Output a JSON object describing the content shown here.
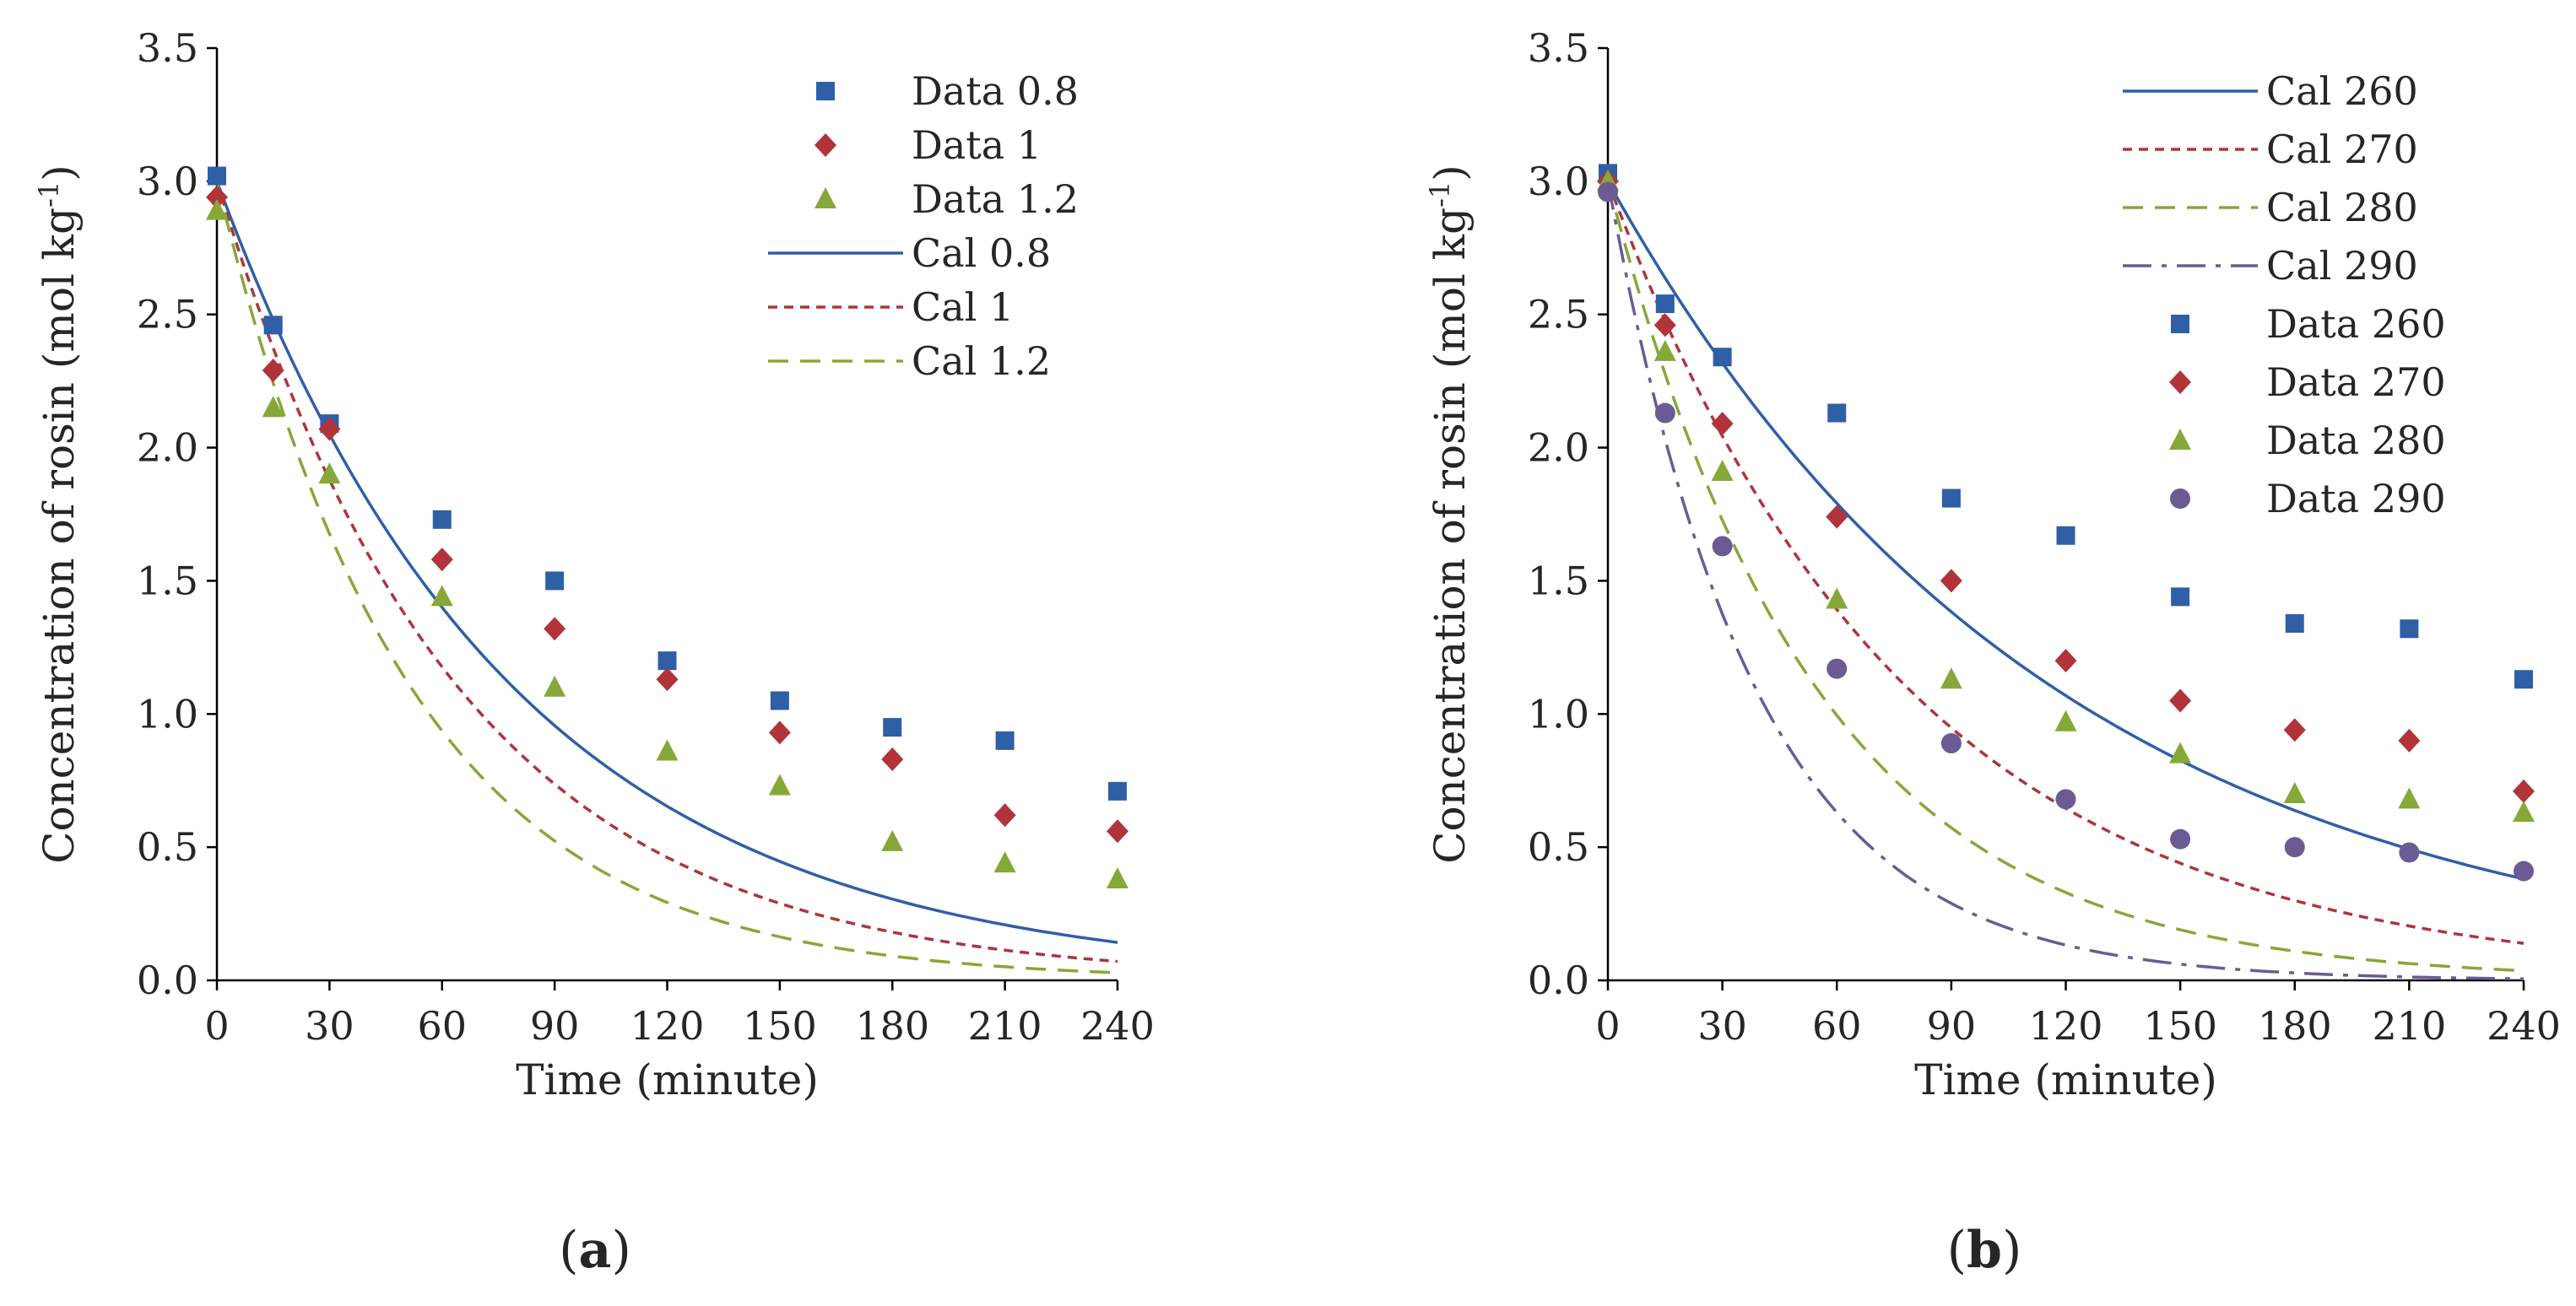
{
  "figure": {
    "panels": [
      {
        "open": "(",
        "letter": "a",
        "close": ")"
      },
      {
        "open": "(",
        "letter": "b",
        "close": ")"
      }
    ]
  },
  "chart_data": [
    {
      "type": "scatter",
      "id": "a",
      "xlabel": "Time (minute)",
      "ylabel_main": "Concentration of rosin (mol kg",
      "ylabel_sup": "-1",
      "ylabel_end": ")",
      "xlim": [
        0,
        240
      ],
      "ylim": [
        0,
        3.5
      ],
      "xticks": [
        0,
        30,
        60,
        90,
        120,
        150,
        180,
        210,
        240
      ],
      "xtick_labels": [
        "0",
        "30",
        "60",
        "90",
        "120",
        "150",
        "180",
        "210",
        "240"
      ],
      "yticks": [
        0,
        0.5,
        1,
        1.5,
        2,
        2.5,
        3,
        3.5
      ],
      "ytick_labels": [
        "0.0",
        "0.5",
        "1.0",
        "1.5",
        "2.0",
        "2.5",
        "3.0",
        "3.5"
      ],
      "grid": false,
      "legend_position": "top-right",
      "data_series": [
        {
          "name": "Data 0.8",
          "marker": "square",
          "color": "#2f5fa7",
          "x": [
            0,
            15,
            30,
            60,
            90,
            120,
            150,
            180,
            210,
            240
          ],
          "y": [
            3.02,
            2.46,
            2.09,
            1.73,
            1.5,
            1.2,
            1.05,
            0.95,
            0.9,
            0.71
          ]
        },
        {
          "name": "Data 1",
          "marker": "diamond",
          "color": "#b0343a",
          "x": [
            0,
            15,
            30,
            60,
            90,
            120,
            150,
            180,
            210,
            240
          ],
          "y": [
            2.94,
            2.29,
            2.07,
            1.58,
            1.32,
            1.13,
            0.93,
            0.83,
            0.62,
            0.56
          ]
        },
        {
          "name": "Data 1.2",
          "marker": "triangle",
          "color": "#86a839",
          "x": [
            0,
            15,
            30,
            60,
            90,
            120,
            150,
            180,
            210,
            240
          ],
          "y": [
            2.89,
            2.15,
            1.9,
            1.44,
            1.1,
            0.86,
            0.73,
            0.52,
            0.44,
            0.38
          ]
        }
      ],
      "fit_series": [
        {
          "name": "Cal 0.8",
          "style": "solid",
          "color": "#2f5fa7",
          "c0": 3.0,
          "k": 0.0127
        },
        {
          "name": "Cal 1",
          "style": "dotted",
          "color": "#b0343a",
          "c0": 3.0,
          "k": 0.0156
        },
        {
          "name": "Cal 1.2",
          "style": "dashed",
          "color": "#86a839",
          "c0": 3.0,
          "k": 0.0194
        }
      ],
      "legend_order": [
        "Data 0.8",
        "Data 1",
        "Data 1.2",
        "Cal 0.8",
        "Cal 1",
        "Cal 1.2"
      ]
    },
    {
      "type": "scatter",
      "id": "b",
      "xlabel": "Time (minute)",
      "ylabel_main": "Concentration of rosin (mol kg",
      "ylabel_sup": "-1",
      "ylabel_end": ")",
      "xlim": [
        0,
        240
      ],
      "ylim": [
        0,
        3.5
      ],
      "xticks": [
        0,
        30,
        60,
        90,
        120,
        150,
        180,
        210,
        240
      ],
      "xtick_labels": [
        "0",
        "30",
        "60",
        "90",
        "120",
        "150",
        "180",
        "210",
        "240"
      ],
      "yticks": [
        0,
        0.5,
        1,
        1.5,
        2,
        2.5,
        3,
        3.5
      ],
      "ytick_labels": [
        "0.0",
        "0.5",
        "1.0",
        "1.5",
        "2.0",
        "2.5",
        "3.0",
        "3.5"
      ],
      "grid": false,
      "legend_position": "top-right",
      "data_series": [
        {
          "name": "Data 260",
          "marker": "square",
          "color": "#2f5fa7",
          "x": [
            0,
            15,
            30,
            60,
            90,
            120,
            150,
            180,
            210,
            240
          ],
          "y": [
            3.03,
            2.54,
            2.34,
            2.13,
            1.81,
            1.67,
            1.44,
            1.34,
            1.32,
            1.13
          ]
        },
        {
          "name": "Data 270",
          "marker": "diamond",
          "color": "#b0343a",
          "x": [
            0,
            15,
            30,
            60,
            90,
            120,
            150,
            180,
            210,
            240
          ],
          "y": [
            3.0,
            2.46,
            2.09,
            1.74,
            1.5,
            1.2,
            1.05,
            0.94,
            0.9,
            0.71
          ]
        },
        {
          "name": "Data 280",
          "marker": "triangle",
          "color": "#86a839",
          "x": [
            0,
            15,
            30,
            60,
            90,
            120,
            150,
            180,
            210,
            240
          ],
          "y": [
            3.0,
            2.36,
            1.91,
            1.43,
            1.13,
            0.97,
            0.85,
            0.7,
            0.68,
            0.63
          ]
        },
        {
          "name": "Data 290",
          "marker": "circle",
          "color": "#6b5b95",
          "x": [
            0,
            15,
            30,
            60,
            90,
            120,
            150,
            180,
            210,
            240
          ],
          "y": [
            2.96,
            2.13,
            1.63,
            1.17,
            0.89,
            0.68,
            0.53,
            0.5,
            0.48,
            0.41
          ]
        }
      ],
      "fit_series": [
        {
          "name": "Cal 260",
          "style": "solid",
          "color": "#2f5fa7",
          "c0": 3.0,
          "k": 0.0086
        },
        {
          "name": "Cal 270",
          "style": "dotted",
          "color": "#b0343a",
          "c0": 3.0,
          "k": 0.0128
        },
        {
          "name": "Cal 280",
          "style": "dashed",
          "color": "#86a839",
          "c0": 3.0,
          "k": 0.0184
        },
        {
          "name": "Cal 290",
          "style": "dashdot",
          "color": "#6b5b95",
          "c0": 3.0,
          "k": 0.026
        }
      ],
      "legend_order": [
        "Cal 260",
        "Cal 270",
        "Cal 280",
        "Cal 290",
        "Data 260",
        "Data 270",
        "Data 280",
        "Data 290"
      ]
    }
  ]
}
